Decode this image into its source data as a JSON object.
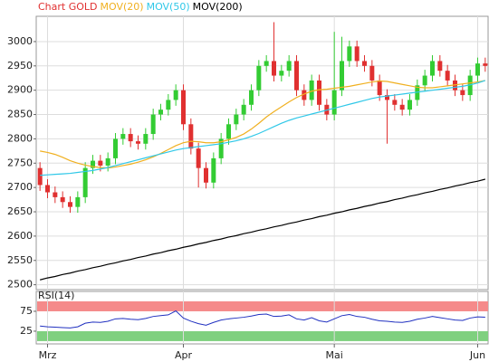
{
  "chart_data": [
    {
      "type": "candlestick",
      "title": "Chart GOLD",
      "title_color": "#e03030",
      "categories": [
        null,
        "Mrz",
        null,
        null,
        null,
        null,
        null,
        null,
        null,
        null,
        null,
        null,
        null,
        null,
        null,
        null,
        null,
        null,
        null,
        "Apr",
        null,
        null,
        null,
        null,
        null,
        null,
        null,
        null,
        null,
        null,
        null,
        null,
        null,
        null,
        null,
        null,
        null,
        null,
        null,
        "Mai",
        null,
        null,
        null,
        null,
        null,
        null,
        null,
        null,
        null,
        null,
        null,
        null,
        null,
        null,
        null,
        null,
        null,
        null,
        "Jun",
        null
      ],
      "open": [
        2740,
        2705,
        2690,
        2680,
        2670,
        2660,
        2680,
        2740,
        2755,
        2745,
        2760,
        2800,
        2810,
        2795,
        2790,
        2810,
        2850,
        2860,
        2880,
        2900,
        2830,
        2780,
        2740,
        2710,
        2760,
        2800,
        2830,
        2850,
        2870,
        2900,
        2950,
        2960,
        2930,
        2940,
        2960,
        2900,
        2880,
        2920,
        2870,
        2850,
        2900,
        2960,
        2990,
        2960,
        2950,
        2920,
        2890,
        2880,
        2870,
        2860,
        2880,
        2910,
        2930,
        2960,
        2940,
        2920,
        2900,
        2890,
        2930,
        2955
      ],
      "high": [
        2752,
        2717,
        2702,
        2692,
        2682,
        2692,
        2752,
        2767,
        2767,
        2772,
        2812,
        2822,
        2822,
        2807,
        2822,
        2862,
        2872,
        2892,
        2912,
        2912,
        2842,
        2792,
        2752,
        2772,
        2812,
        2842,
        2862,
        2882,
        2912,
        2962,
        2972,
        3040,
        2952,
        2972,
        2972,
        2912,
        2932,
        2932,
        2882,
        3020,
        3010,
        3002,
        3002,
        2972,
        2962,
        2932,
        2902,
        2892,
        2882,
        2892,
        2922,
        2942,
        2972,
        2972,
        2952,
        2932,
        2912,
        2942,
        2967,
        2967
      ],
      "low": [
        2693,
        2678,
        2668,
        2658,
        2648,
        2648,
        2668,
        2728,
        2733,
        2733,
        2748,
        2788,
        2783,
        2778,
        2778,
        2798,
        2838,
        2848,
        2868,
        2818,
        2768,
        2700,
        2698,
        2698,
        2748,
        2788,
        2818,
        2838,
        2858,
        2888,
        2938,
        2918,
        2918,
        2928,
        2888,
        2868,
        2868,
        2858,
        2838,
        2838,
        2888,
        2948,
        2948,
        2938,
        2908,
        2878,
        2790,
        2858,
        2848,
        2848,
        2868,
        2898,
        2918,
        2928,
        2908,
        2888,
        2878,
        2878,
        2918,
        2938
      ],
      "close": [
        2705,
        2690,
        2680,
        2670,
        2660,
        2680,
        2740,
        2755,
        2745,
        2760,
        2800,
        2810,
        2795,
        2790,
        2810,
        2850,
        2860,
        2880,
        2900,
        2830,
        2780,
        2740,
        2710,
        2760,
        2800,
        2830,
        2850,
        2870,
        2900,
        2950,
        2960,
        2930,
        2940,
        2960,
        2900,
        2880,
        2920,
        2870,
        2850,
        2900,
        2960,
        2990,
        2960,
        2950,
        2920,
        2890,
        2880,
        2870,
        2860,
        2880,
        2910,
        2930,
        2960,
        2940,
        2920,
        2900,
        2890,
        2930,
        2955,
        2950
      ],
      "up_color": "#33cc33",
      "down_color": "#e03030",
      "series": [
        {
          "name": "MOV(20)",
          "color": "#f0b020",
          "values": [
            2775,
            2772,
            2768,
            2762,
            2755,
            2750,
            2746,
            2743,
            2741,
            2740,
            2742,
            2745,
            2748,
            2752,
            2757,
            2763,
            2770,
            2778,
            2786,
            2792,
            2795,
            2794,
            2792,
            2792,
            2794,
            2798,
            2803,
            2810,
            2820,
            2832,
            2845,
            2856,
            2866,
            2876,
            2885,
            2892,
            2898,
            2901,
            2902,
            2904,
            2906,
            2908,
            2911,
            2914,
            2917,
            2919,
            2918,
            2915,
            2912,
            2909,
            2906,
            2905,
            2905,
            2907,
            2909,
            2911,
            2913,
            2915,
            2917,
            2920
          ]
        },
        {
          "name": "MOV(50)",
          "color": "#30c8e8",
          "values": [
            2725,
            2726,
            2727,
            2728,
            2729,
            2731,
            2733,
            2735,
            2738,
            2741,
            2745,
            2749,
            2753,
            2757,
            2761,
            2765,
            2769,
            2773,
            2777,
            2780,
            2782,
            2784,
            2786,
            2788,
            2790,
            2793,
            2796,
            2800,
            2805,
            2811,
            2818,
            2825,
            2832,
            2838,
            2843,
            2847,
            2851,
            2855,
            2859,
            2863,
            2867,
            2871,
            2875,
            2879,
            2883,
            2886,
            2888,
            2890,
            2892,
            2894,
            2896,
            2898,
            2900,
            2902,
            2904,
            2906,
            2908,
            2911,
            2915,
            2920
          ]
        },
        {
          "name": "MOV(200)",
          "color": "#000000",
          "values": [
            2510,
            2514,
            2517,
            2521,
            2524,
            2528,
            2531,
            2535,
            2538,
            2542,
            2545,
            2549,
            2552,
            2556,
            2559,
            2563,
            2566,
            2570,
            2573,
            2577,
            2580,
            2584,
            2587,
            2591,
            2594,
            2598,
            2601,
            2605,
            2608,
            2612,
            2615,
            2619,
            2622,
            2626,
            2629,
            2633,
            2636,
            2640,
            2643,
            2647,
            2650,
            2654,
            2657,
            2661,
            2664,
            2668,
            2671,
            2675,
            2678,
            2682,
            2685,
            2689,
            2692,
            2696,
            2699,
            2703,
            2706,
            2710,
            2713,
            2717
          ]
        }
      ],
      "ylim": [
        2490,
        3052
      ],
      "yticks": [
        2500,
        2550,
        2600,
        2650,
        2700,
        2750,
        2800,
        2850,
        2900,
        2950,
        3000
      ],
      "grid": true
    },
    {
      "type": "line",
      "title": "RSI(14)",
      "color": "#2030c0",
      "values": [
        38,
        36,
        35,
        34,
        33,
        36,
        45,
        48,
        47,
        50,
        56,
        57,
        55,
        54,
        57,
        62,
        64,
        66,
        76,
        58,
        50,
        44,
        40,
        47,
        53,
        56,
        58,
        60,
        63,
        67,
        68,
        62,
        63,
        66,
        56,
        53,
        59,
        51,
        48,
        56,
        64,
        67,
        62,
        60,
        55,
        51,
        50,
        48,
        47,
        50,
        55,
        58,
        62,
        59,
        56,
        53,
        52,
        58,
        61,
        60
      ],
      "bands": [
        {
          "from": 75,
          "to": 100,
          "color": "#f58a8a"
        },
        {
          "from": 0,
          "to": 25,
          "color": "#7fd07f"
        }
      ],
      "ylim": [
        -7,
        125
      ],
      "yticks": [
        25,
        75
      ]
    }
  ]
}
